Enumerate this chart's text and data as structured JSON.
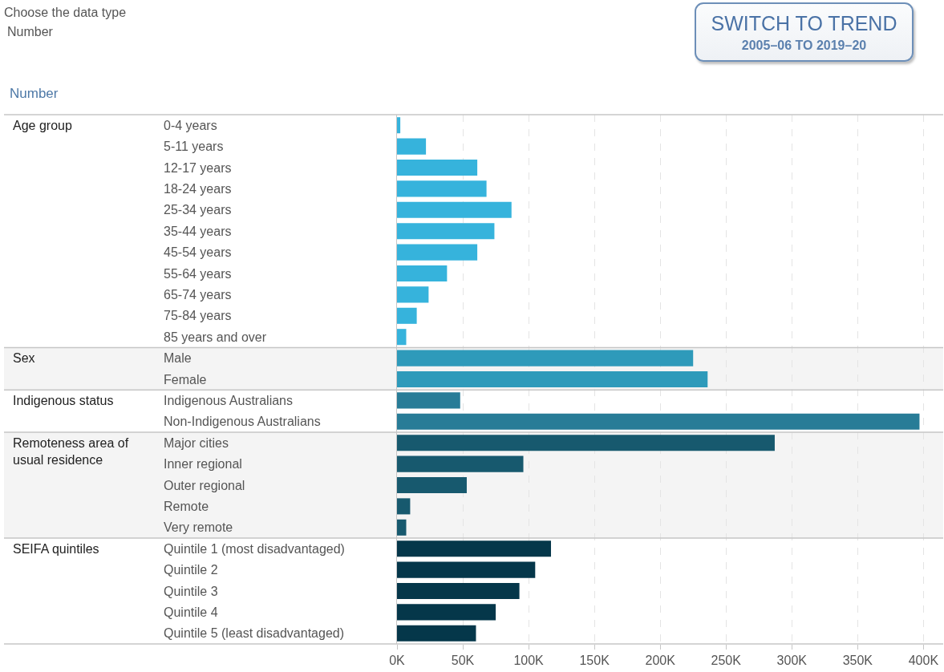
{
  "chart_data": {
    "type": "bar",
    "orientation": "horizontal",
    "title": "Number",
    "annotations": [
      "Choose the data type",
      "Number",
      "SWITCH TO TREND",
      "2005–06 TO 2019–20",
      "Age group",
      "Sex",
      "Indigenous status",
      "Remoteness area of usual residence",
      "SEIFA quintiles"
    ],
    "categories": [
      "0-4 years",
      "5-11 years",
      "12-17 years",
      "18-24 years",
      "25-34 years",
      "35-44 years",
      "45-54 years",
      "55-64 years",
      "65-74 years",
      "75-84 years",
      "85 years and over",
      "Male",
      "Female",
      "Indigenous Australians",
      "Non-Indigenous Australians",
      "Major cities",
      "Inner regional",
      "Outer regional",
      "Remote",
      "Very remote",
      "Quintile 1 (most disadvantaged)",
      "Quintile 2",
      "Quintile 3",
      "Quintile 4",
      "Quintile 5 (least disadvantaged)"
    ],
    "series": [
      {
        "color": "#36b3dc",
        "values": [
          2.5,
          22,
          61,
          68,
          87,
          74,
          61,
          38,
          24,
          15,
          7,
          null,
          null,
          null,
          null,
          null,
          null,
          null,
          null,
          null,
          null,
          null,
          null,
          null,
          null
        ]
      },
      {
        "color": "#2e9aba",
        "values": [
          null,
          null,
          null,
          null,
          null,
          null,
          null,
          null,
          null,
          null,
          null,
          225,
          236,
          null,
          null,
          null,
          null,
          null,
          null,
          null,
          null,
          null,
          null,
          null,
          null
        ]
      },
      {
        "color": "#287c97",
        "values": [
          null,
          null,
          null,
          null,
          null,
          null,
          null,
          null,
          null,
          null,
          null,
          null,
          null,
          48,
          397,
          null,
          null,
          null,
          null,
          null,
          null,
          null,
          null,
          null,
          null
        ]
      },
      {
        "color": "#17596e",
        "values": [
          null,
          null,
          null,
          null,
          null,
          null,
          null,
          null,
          null,
          null,
          null,
          null,
          null,
          null,
          null,
          287,
          96,
          53,
          10,
          7,
          null,
          null,
          null,
          null,
          null
        ]
      },
      {
        "color": "#05374a",
        "values": [
          null,
          null,
          null,
          null,
          null,
          null,
          null,
          null,
          null,
          null,
          null,
          null,
          null,
          null,
          null,
          null,
          null,
          null,
          null,
          null,
          117,
          105,
          93,
          75,
          60
        ]
      }
    ],
    "xlim": [
      0,
      415
    ],
    "xticks": [
      {
        "value": 0,
        "label": "0K"
      },
      {
        "value": 50,
        "label": "50K"
      },
      {
        "value": 100,
        "label": "100K"
      },
      {
        "value": 150,
        "label": "150K"
      },
      {
        "value": 200,
        "label": "200K"
      },
      {
        "value": 250,
        "label": "250K"
      },
      {
        "value": 300,
        "label": "300K"
      },
      {
        "value": 350,
        "label": "350K"
      },
      {
        "value": 400,
        "label": "400K"
      }
    ],
    "grid": "x"
  }
}
